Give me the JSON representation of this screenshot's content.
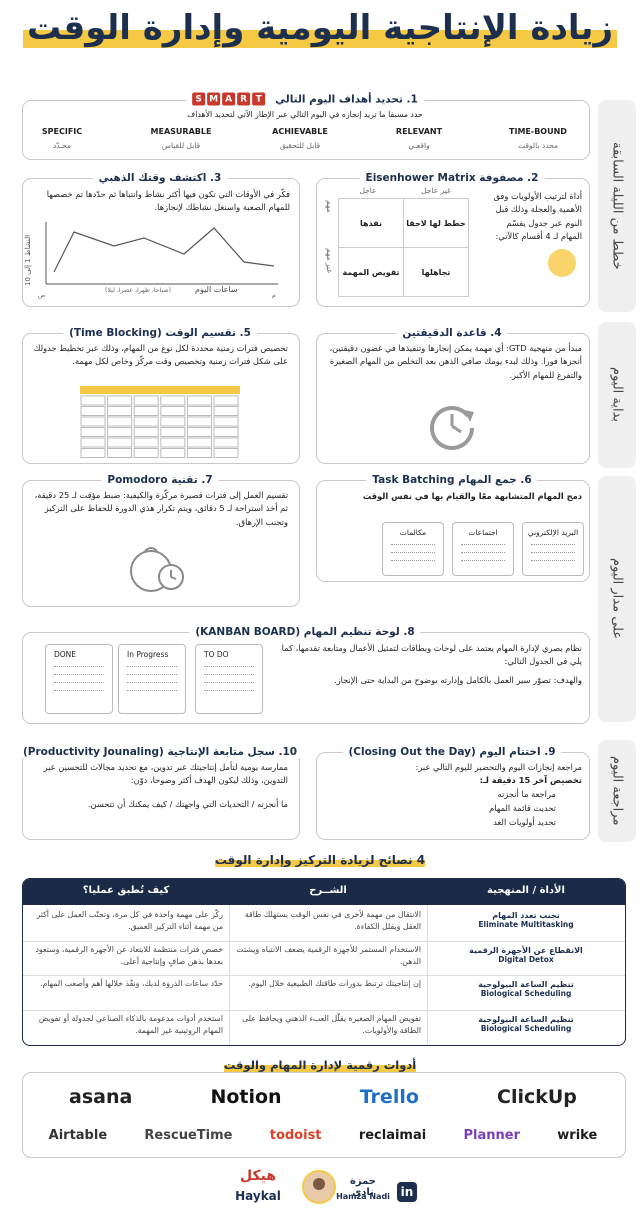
{
  "header": {
    "title": "زيادة الإنتاجية اليومية وإدارة الوقت"
  },
  "phases": [
    "خطط من الليلة السابقة",
    "بداية اليوم",
    "على مدار اليوم",
    "مراجعة اليوم"
  ],
  "s1": {
    "title": "1. تحديد أهداف اليوم التالي",
    "letters": [
      "S",
      "M",
      "A",
      "R",
      "T"
    ],
    "subtitle": "حدد مسبقا ما تريد إنجازه في اليوم التالي عبر الإطار الآتي لتحديد الأهداف",
    "items": [
      {
        "en": "SPECIFIC",
        "ar": "محـدّد"
      },
      {
        "en": "MEASURABLE",
        "ar": "قابل للقياس"
      },
      {
        "en": "ACHIEVABLE",
        "ar": "قابل للتحقيق"
      },
      {
        "en": "RELEVANT",
        "ar": "واقعـي"
      },
      {
        "en": "TIME-BOUND",
        "ar": "محدد بالوقت"
      }
    ]
  },
  "s2": {
    "title": "2. مصفوفة Eisenhower Matrix",
    "text": "أداة لترتيب الأولويات وفق الأهمية والعجلة وذلك قبل النوم عبر جدول يقسّم المهام لـ 4 أقسام كالآتي:",
    "cols": [
      "عاجل",
      "غير عاجل"
    ],
    "rows": [
      "مهم",
      "غير مهم"
    ],
    "cells": [
      "نفذها",
      "خطط لها لاحقا",
      "تفويض المهمة",
      "تجاهلها"
    ]
  },
  "s3": {
    "title": "3. اكتشف وقتك الذهبي",
    "text": "فكّر في الأوقات التي تكون فيها أكثر نشاط وانتباها ثم حدّدها تم خصصها للمهام الصعبة واستغل نشاطك لإنجازها.",
    "y_label": "النشاط 1 إلى 10",
    "x_label": "ساعات اليوم",
    "x_note": "(صباحا، ظهرا، عصرا، ليلا)",
    "x_start": "ص",
    "x_end": "م"
  },
  "s4": {
    "title": "4. قاعدة الدقيقتين",
    "text": "مبدأ من منهجية GTD: أي مهمة يمكن إنجازها وتنفيذها في غضون دقيقتين، أنجزها فورا. وذلك لبدء يومك صافي الذهن بعد التخلص من المهام الصغيرة والتفرغ للمهام الأكبر."
  },
  "s5": {
    "title": "5. تقسيم الوقت (Time Blocking)",
    "text": "تخصيص فترات زمنية محددة لكل نوع من المهام، وذلك عبر تخطيط جدولك على شكل فترات زمنية وتخصيص وقت مركّز وخاص لكل مهمة."
  },
  "s6": {
    "title": "6. جمع المهام Task Batching",
    "text": "دمج المهام المتشابهة معًا والقيام بها في نفس الوقت",
    "cards": [
      "البريد الإلكتروني",
      "اجتماعات",
      "مكالمات"
    ]
  },
  "s7": {
    "title": "7. تقنية Pomodoro",
    "text": "تقسيم العمل إلى فترات قصيرة مركّزة والكيفية: ضبط مؤقت لـ 25 دقيقة، ثم أخذ استراحة لـ 5 دقائق، ويتم تكرار هذي الدورة للحفاظ على التركيز وتجنب الإرهاق."
  },
  "s8": {
    "title": "8. لوحة تنظيم المهام (KANBAN BOARD)",
    "text": "نظام بصري لإدارة المهام يعتمد على لوحات وبطاقات لتمثيل الأعمال ومتابعة تقدمها، كما يلي في الجدول التالي:",
    "goal": "والهدف: تصوّر سير العمل بالكامل وإدارته بوضوح من البداية حتى الإنجاز.",
    "columns": [
      "DONE",
      "In Progress",
      "TO DO"
    ]
  },
  "s9": {
    "title": "9. اختتام اليوم (Closing Out the Day)",
    "intro": "مراجعة إنجازات اليوم والتحضير لليوم التالي عبر:",
    "lead": "تخصيص آخر 15 دقيقة لـ:",
    "items": [
      "مراجعة ما أنجزته",
      "تحديث قائمة المهام",
      "تحديد أولويات الغد"
    ]
  },
  "s10": {
    "title": "10. سجل متابعة الإنتاجية (Productivity Jounaling)",
    "text": "ممارسة يومية لتأمل إنتاجيتك عبر تدوين، مع تحديد مجالات للتحسين عبر التدوين، وذلك ليكون الهدف أكثر وضوحا، دوّن:",
    "prompt": "ما أنجزته / التحديات التي واجهتك / كيف يمكنك أن تتحسن."
  },
  "tips": {
    "title": "4 نصائح لزيادة التركيز وإدارة الوقت",
    "headers": [
      "الأداة / المنهجية",
      "الشــرح",
      "كيف تُطبق عمليا؟"
    ],
    "rows": [
      {
        "ar": "تجنب تعدد المهام",
        "en": "Eliminate Multitasking",
        "explain": "الانتقال من مهمة لأخرى في نفس الوقت يستهلك طاقة العقل ويقلل الكفاءة.",
        "apply": "ركّز على مهمة واحدة في كل مرة، وتجنّب العمل على أكثر من مهمة أثناء التركيز العميق."
      },
      {
        "ar": "الانقطاع عن الأجهزة الرقمية",
        "en": "Digital Detox",
        "explain": "الاستخدام المستمر للأجهزة الرقمية يضعف الانتباه ويشتت الذهن.",
        "apply": "خصص فترات منتظمة للابتعاد عن الأجهزة الرقمية، وستعود بعدها بذهن صافٍ وإنتاجية أعلى."
      },
      {
        "ar": "تنظيم الساعة البيولوجية",
        "en": "Biological Scheduling",
        "explain": "إن إنتاجيتك ترتبط بدورات طاقتك الطبيعية خلال اليوم.",
        "apply": "حدّد ساعات الذروة لديك، ونفّذ خلالها أهم وأصعب المهام."
      },
      {
        "ar": "تنظيم الساعة البيولوجية",
        "en": "Biological Scheduling",
        "explain": "تفويض المهام الصغيرة يقلّل العبء الذهني ويحافظ على الطاقة والأولويات.",
        "apply": "استخدم أدوات مدعومة بالذكاء الصناعي لجدولة أو تفويض المهام الروتينية غير المهمة."
      }
    ]
  },
  "tools": {
    "title": "أدوات رقمية لإدارة المهام والوقت",
    "items": [
      {
        "name": "ClickUp",
        "color": "#222222"
      },
      {
        "name": "Trello",
        "color": "#1f6fc5"
      },
      {
        "name": "Notion",
        "color": "#111111"
      },
      {
        "name": "asana",
        "color": "#222222"
      },
      {
        "name": "wrike",
        "color": "#1c1c1c"
      },
      {
        "name": "Planner",
        "color": "#7a3fb8"
      },
      {
        "name": "reclaimai",
        "color": "#1c1c1c"
      },
      {
        "name": "todoist",
        "color": "#d9422b"
      },
      {
        "name": "RescueTime",
        "color": "#444444"
      },
      {
        "name": "Airtable",
        "color": "#333333"
      }
    ]
  },
  "footer": {
    "author_ar": "حمزة نادي",
    "author_en": "Hamza Nadi",
    "brand_ar": "هيكل",
    "brand_en": "Haykal",
    "linkedin": "in"
  }
}
